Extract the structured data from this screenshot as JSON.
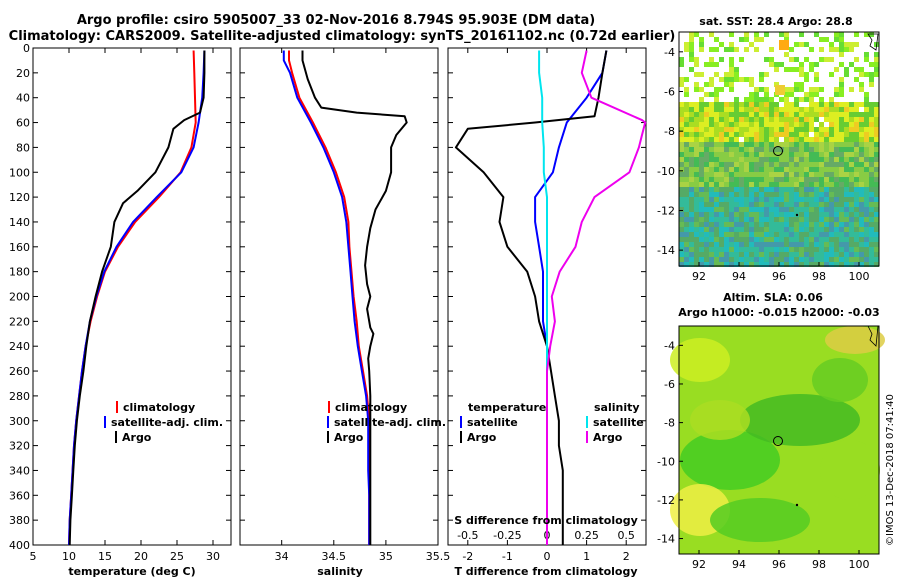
{
  "title_line1": "Argo profile: csiro 5905007_33 02-Nov-2016 8.794S 95.903E (DM data)",
  "title_line2": "Climatology: CARS2009. Satellite-adjusted climatology: synTS_20161102.nc (0.72d earlier)",
  "credit": "©IMOS 13-Dec-2018 07:41:40",
  "colors": {
    "climatology": "#ff0000",
    "satellite": "#0000ff",
    "argo": "#000000",
    "sal_satellite": "#00e5ee",
    "sal_argo": "#ee00ee"
  },
  "chart_data": [
    {
      "type": "line",
      "id": "temperature",
      "xlabel": "temperature (deg C)",
      "ylabel": "",
      "xlim": [
        5,
        32.5
      ],
      "ylim": [
        400,
        0
      ],
      "xticks": [
        "5",
        "10",
        "15",
        "20",
        "25",
        "30"
      ],
      "yticks": [
        "0",
        "20",
        "40",
        "60",
        "80",
        "100",
        "120",
        "140",
        "160",
        "180",
        "200",
        "220",
        "240",
        "260",
        "280",
        "300",
        "320",
        "340",
        "360",
        "380",
        "400"
      ],
      "legend": [
        "climatology",
        "satellite-adj. clim.",
        "Argo"
      ],
      "series": [
        {
          "name": "climatology",
          "color": "#ff0000",
          "points": [
            [
              27.3,
              2
            ],
            [
              27.4,
              20
            ],
            [
              27.5,
              40
            ],
            [
              27.6,
              60
            ],
            [
              27.0,
              80
            ],
            [
              25.5,
              100
            ],
            [
              22.5,
              120
            ],
            [
              19.2,
              140
            ],
            [
              16.8,
              160
            ],
            [
              15.0,
              180
            ],
            [
              13.9,
              200
            ],
            [
              13.0,
              220
            ],
            [
              12.3,
              240
            ],
            [
              11.8,
              260
            ],
            [
              11.4,
              280
            ],
            [
              11.0,
              300
            ],
            [
              10.7,
              320
            ],
            [
              10.5,
              340
            ],
            [
              10.3,
              360
            ],
            [
              10.1,
              380
            ],
            [
              10.0,
              400
            ]
          ]
        },
        {
          "name": "satellite-adj. clim.",
          "color": "#0000ff",
          "points": [
            [
              28.8,
              2
            ],
            [
              28.7,
              20
            ],
            [
              28.5,
              40
            ],
            [
              28.0,
              60
            ],
            [
              27.3,
              80
            ],
            [
              25.6,
              100
            ],
            [
              22.2,
              120
            ],
            [
              18.9,
              140
            ],
            [
              16.6,
              160
            ],
            [
              14.9,
              180
            ],
            [
              13.8,
              200
            ],
            [
              12.9,
              220
            ],
            [
              12.3,
              240
            ],
            [
              11.8,
              260
            ],
            [
              11.4,
              280
            ],
            [
              11.0,
              300
            ],
            [
              10.7,
              320
            ],
            [
              10.5,
              340
            ],
            [
              10.3,
              360
            ],
            [
              10.1,
              380
            ],
            [
              10.0,
              400
            ]
          ]
        },
        {
          "name": "Argo",
          "color": "#000000",
          "points": [
            [
              28.8,
              2
            ],
            [
              28.8,
              20
            ],
            [
              28.7,
              40
            ],
            [
              28.2,
              52
            ],
            [
              26.0,
              58
            ],
            [
              24.5,
              65
            ],
            [
              23.8,
              80
            ],
            [
              22.0,
              100
            ],
            [
              19.5,
              115
            ],
            [
              17.5,
              125
            ],
            [
              16.3,
              140
            ],
            [
              15.8,
              160
            ],
            [
              14.6,
              180
            ],
            [
              13.7,
              200
            ],
            [
              12.9,
              220
            ],
            [
              12.4,
              240
            ],
            [
              12.0,
              260
            ],
            [
              11.5,
              280
            ],
            [
              11.1,
              300
            ],
            [
              10.8,
              320
            ],
            [
              10.6,
              340
            ],
            [
              10.4,
              360
            ],
            [
              10.2,
              380
            ],
            [
              10.1,
              400
            ]
          ]
        }
      ]
    },
    {
      "type": "line",
      "id": "salinity",
      "xlabel": "salinity",
      "ylabel": "",
      "xlim": [
        33.6,
        35.5
      ],
      "ylim": [
        400,
        0
      ],
      "xticks": [
        "34",
        "34.5",
        "35",
        "35.5"
      ],
      "legend": [
        "climatology",
        "satellite-adj. clim.",
        "Argo"
      ],
      "series": [
        {
          "name": "climatology",
          "color": "#ff0000",
          "points": [
            [
              34.07,
              2
            ],
            [
              34.07,
              10
            ],
            [
              34.1,
              20
            ],
            [
              34.17,
              40
            ],
            [
              34.3,
              60
            ],
            [
              34.42,
              80
            ],
            [
              34.52,
              100
            ],
            [
              34.6,
              120
            ],
            [
              34.64,
              140
            ],
            [
              34.65,
              160
            ],
            [
              34.67,
              180
            ],
            [
              34.69,
              200
            ],
            [
              34.72,
              220
            ],
            [
              34.74,
              240
            ],
            [
              34.78,
              260
            ],
            [
              34.82,
              280
            ],
            [
              34.84,
              300
            ],
            [
              34.84,
              320
            ],
            [
              34.84,
              340
            ],
            [
              34.84,
              360
            ],
            [
              34.84,
              380
            ],
            [
              34.84,
              400
            ]
          ]
        },
        {
          "name": "satellite-adj. clim.",
          "color": "#0000ff",
          "points": [
            [
              34.02,
              2
            ],
            [
              34.02,
              10
            ],
            [
              34.08,
              20
            ],
            [
              34.15,
              40
            ],
            [
              34.28,
              60
            ],
            [
              34.4,
              80
            ],
            [
              34.5,
              100
            ],
            [
              34.58,
              120
            ],
            [
              34.62,
              140
            ],
            [
              34.64,
              160
            ],
            [
              34.66,
              180
            ],
            [
              34.68,
              200
            ],
            [
              34.7,
              220
            ],
            [
              34.73,
              240
            ],
            [
              34.77,
              260
            ],
            [
              34.81,
              280
            ],
            [
              34.83,
              300
            ],
            [
              34.83,
              320
            ],
            [
              34.83,
              340
            ],
            [
              34.84,
              360
            ],
            [
              34.84,
              380
            ],
            [
              34.84,
              400
            ]
          ]
        },
        {
          "name": "Argo",
          "color": "#000000",
          "points": [
            [
              34.2,
              2
            ],
            [
              34.2,
              10
            ],
            [
              34.25,
              25
            ],
            [
              34.32,
              40
            ],
            [
              34.38,
              48
            ],
            [
              34.72,
              52
            ],
            [
              35.18,
              55
            ],
            [
              35.2,
              60
            ],
            [
              35.1,
              70
            ],
            [
              35.05,
              80
            ],
            [
              35.05,
              100
            ],
            [
              35.0,
              115
            ],
            [
              34.9,
              130
            ],
            [
              34.85,
              145
            ],
            [
              34.82,
              160
            ],
            [
              34.8,
              175
            ],
            [
              34.82,
              190
            ],
            [
              34.85,
              200
            ],
            [
              34.82,
              210
            ],
            [
              34.85,
              225
            ],
            [
              34.88,
              230
            ],
            [
              34.85,
              240
            ],
            [
              34.83,
              250
            ],
            [
              34.84,
              260
            ],
            [
              34.85,
              280
            ],
            [
              34.85,
              300
            ],
            [
              34.85,
              320
            ],
            [
              34.85,
              340
            ],
            [
              34.85,
              360
            ],
            [
              34.85,
              380
            ],
            [
              34.85,
              400
            ]
          ]
        }
      ]
    },
    {
      "type": "line",
      "id": "difference",
      "xlabel": "T difference from climatology",
      "top_xlabel": "S difference from climatology",
      "ylabel": "",
      "xlim": [
        -2.5,
        2.5
      ],
      "ylim": [
        400,
        0
      ],
      "xticks": [
        "-2",
        "-1",
        "0",
        "1",
        "2"
      ],
      "top_xlim": [
        -0.625,
        0.625
      ],
      "top_xticks": [
        "-0.5",
        "-0.25",
        "0",
        "0.25",
        "0.5"
      ],
      "legend_left_title": "temperature",
      "legend_right_title": "salinity",
      "legend_left": [
        "satellite",
        "Argo"
      ],
      "legend_right": [
        "satellite",
        "Argo"
      ],
      "series": [
        {
          "name": "T satellite",
          "color": "#0000ff",
          "points": [
            [
              1.5,
              2
            ],
            [
              1.4,
              20
            ],
            [
              1.0,
              40
            ],
            [
              0.5,
              60
            ],
            [
              0.3,
              80
            ],
            [
              0.15,
              100
            ],
            [
              -0.3,
              120
            ],
            [
              -0.3,
              140
            ],
            [
              -0.2,
              160
            ],
            [
              -0.1,
              180
            ],
            [
              -0.1,
              200
            ],
            [
              -0.1,
              220
            ],
            [
              0.0,
              240
            ],
            [
              0.0,
              260
            ],
            [
              0.0,
              280
            ],
            [
              0.0,
              300
            ],
            [
              0.0,
              320
            ],
            [
              0.0,
              340
            ],
            [
              0.0,
              360
            ],
            [
              0.0,
              380
            ],
            [
              0.0,
              400
            ]
          ]
        },
        {
          "name": "T Argo",
          "color": "#000000",
          "points": [
            [
              1.5,
              2
            ],
            [
              1.4,
              20
            ],
            [
              1.3,
              40
            ],
            [
              1.2,
              55
            ],
            [
              -0.3,
              60
            ],
            [
              -2.0,
              65
            ],
            [
              -2.3,
              80
            ],
            [
              -1.6,
              100
            ],
            [
              -1.1,
              120
            ],
            [
              -1.2,
              140
            ],
            [
              -1.0,
              160
            ],
            [
              -0.5,
              180
            ],
            [
              -0.3,
              200
            ],
            [
              -0.2,
              220
            ],
            [
              0.0,
              240
            ],
            [
              0.1,
              260
            ],
            [
              0.2,
              280
            ],
            [
              0.3,
              300
            ],
            [
              0.3,
              320
            ],
            [
              0.4,
              340
            ],
            [
              0.4,
              360
            ],
            [
              0.4,
              380
            ],
            [
              0.4,
              400
            ]
          ]
        },
        {
          "name": "S satellite",
          "color": "#00e5ee",
          "points": [
            [
              -0.05,
              2
            ],
            [
              -0.05,
              20
            ],
            [
              -0.03,
              40
            ],
            [
              -0.03,
              60
            ],
            [
              -0.02,
              80
            ],
            [
              -0.02,
              100
            ],
            [
              0.0,
              120
            ],
            [
              0.0,
              140
            ],
            [
              0.0,
              160
            ],
            [
              0.0,
              180
            ],
            [
              0.0,
              200
            ],
            [
              0.0,
              220
            ],
            [
              0.0,
              240
            ],
            [
              0.0,
              260
            ],
            [
              0.0,
              280
            ],
            [
              0.0,
              300
            ],
            [
              0.0,
              320
            ],
            [
              0.0,
              340
            ],
            [
              0.0,
              360
            ],
            [
              0.0,
              380
            ],
            [
              0.0,
              400
            ]
          ]
        },
        {
          "name": "S Argo",
          "color": "#ee00ee",
          "points": [
            [
              0.25,
              2
            ],
            [
              0.22,
              20
            ],
            [
              0.28,
              40
            ],
            [
              0.6,
              58
            ],
            [
              0.62,
              60
            ],
            [
              0.6,
              70
            ],
            [
              0.58,
              80
            ],
            [
              0.52,
              100
            ],
            [
              0.3,
              120
            ],
            [
              0.22,
              140
            ],
            [
              0.18,
              160
            ],
            [
              0.08,
              180
            ],
            [
              0.03,
              200
            ],
            [
              0.05,
              220
            ],
            [
              0.02,
              240
            ],
            [
              0.0,
              260
            ],
            [
              0.0,
              280
            ],
            [
              0.0,
              300
            ],
            [
              0.0,
              320
            ],
            [
              0.0,
              340
            ],
            [
              0.0,
              360
            ],
            [
              0.0,
              380
            ],
            [
              0.0,
              400
            ]
          ]
        }
      ]
    },
    {
      "type": "heatmap",
      "id": "sst_map",
      "title": "sat. SST: 28.4 Argo: 28.8",
      "xticks": [
        "92",
        "94",
        "96",
        "98",
        "100"
      ],
      "yticks": [
        "-4",
        "-6",
        "-8",
        "-10",
        "-12",
        "-14"
      ],
      "xlim": [
        91,
        101
      ],
      "ylim": [
        -14.8,
        -3
      ]
    },
    {
      "type": "heatmap",
      "id": "sla_map",
      "title_line1": "Altim. SLA: 0.06",
      "title_line2": "Argo h1000: -0.015 h2000: -0.03",
      "xticks": [
        "92",
        "94",
        "96",
        "98",
        "100"
      ],
      "yticks": [
        "-4",
        "-6",
        "-8",
        "-10",
        "-12",
        "-14"
      ],
      "xlim": [
        91,
        101
      ],
      "ylim": [
        -14.8,
        -3
      ]
    }
  ]
}
